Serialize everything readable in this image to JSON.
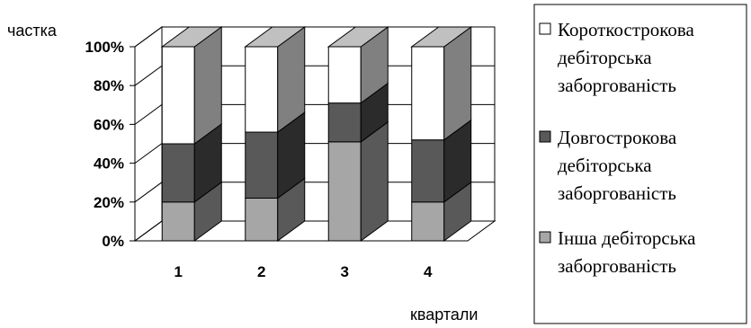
{
  "chart_data": {
    "type": "bar",
    "stacked": true,
    "stack_mode": "percent",
    "three_d": true,
    "ylabel": "частка",
    "xlabel": "квартали",
    "categories": [
      "1",
      "2",
      "3",
      "4"
    ],
    "y_ticks": [
      "0%",
      "20%",
      "40%",
      "60%",
      "80%",
      "100%"
    ],
    "ylim": [
      0,
      100
    ],
    "grid": true,
    "legend_position": "right",
    "series": [
      {
        "name": "Інша дебіторська заборгованість",
        "values": [
          20,
          22,
          51,
          20
        ],
        "color": "#a6a6a6",
        "side_color": "#595959",
        "top_color": "#c8c8c8"
      },
      {
        "name": "Довгострокова дебіторська заборгованість",
        "values": [
          30,
          34,
          20,
          32
        ],
        "color": "#595959",
        "side_color": "#2b2b2b",
        "top_color": "#7a7a7a"
      },
      {
        "name": "Короткострокова дебіторська заборгованість",
        "values": [
          50,
          44,
          29,
          48
        ],
        "color": "#ffffff",
        "side_color": "#808080",
        "top_color": "#c0c0c0"
      }
    ],
    "legend": [
      {
        "series": 2,
        "lines": [
          "Короткострокова",
          "дебіторська",
          "заборгованість"
        ]
      },
      {
        "series": 1,
        "lines": [
          "Довгострокова",
          "дебіторська",
          "заборгованість"
        ]
      },
      {
        "series": 0,
        "lines": [
          "Інша дебіторська",
          "заборгованість"
        ]
      }
    ]
  }
}
